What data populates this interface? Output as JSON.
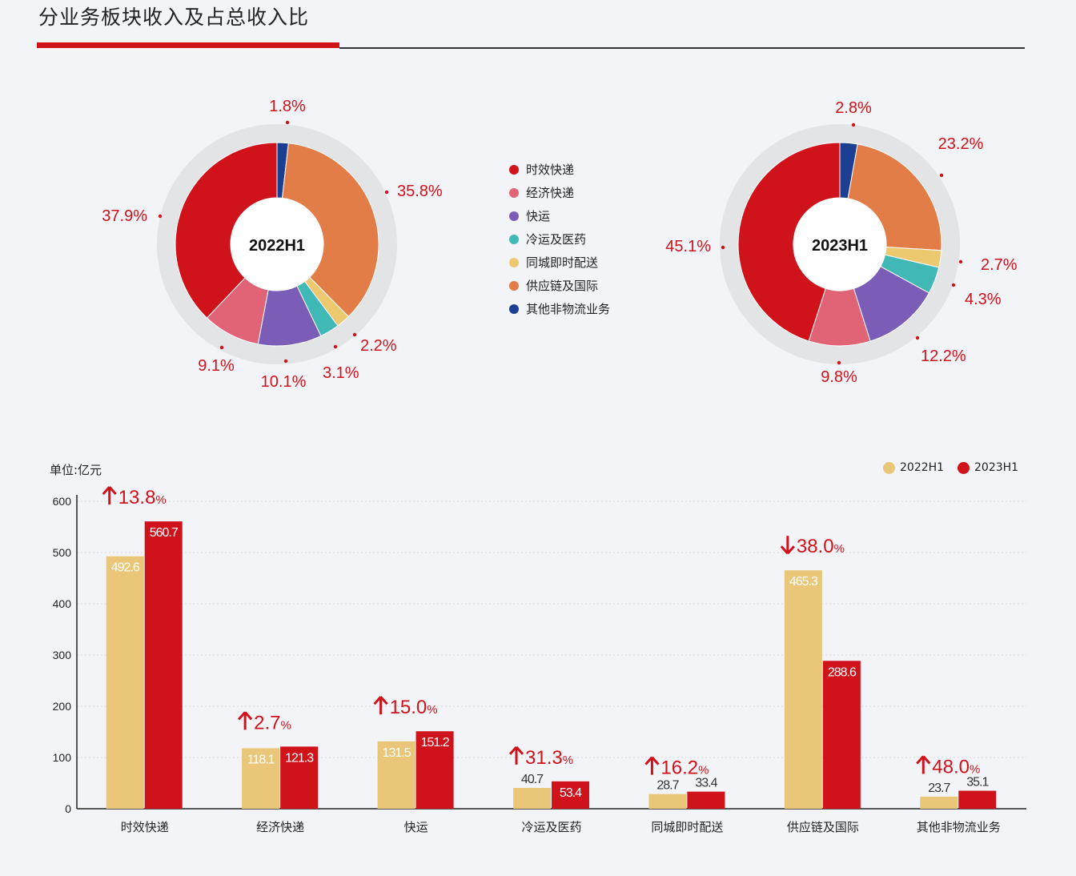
{
  "page": {
    "title": "分业务板块收入及占总收入比"
  },
  "colors": {
    "accent_red": "#d0121b",
    "label_red": "#d0121b",
    "bar_2022": "#e9c678",
    "bar_2023": "#d0121b",
    "ring_bg": "#e3e4e6"
  },
  "legend": {
    "items": [
      {
        "label": "时效快递",
        "color": "#d0121b"
      },
      {
        "label": "经济快递",
        "color": "#e06476"
      },
      {
        "label": "快运",
        "color": "#7b5cb6"
      },
      {
        "label": "冷运及医药",
        "color": "#3fb8b6"
      },
      {
        "label": "同城即时配送",
        "color": "#ecc86e"
      },
      {
        "label": "供应链及国际",
        "color": "#e37d48"
      },
      {
        "label": "其他非物流业务",
        "color": "#1c3f93"
      }
    ]
  },
  "bar_chart": {
    "unit_label": "单位:亿元",
    "legend_2022": "2022H1",
    "legend_2023": "2023H1"
  },
  "chart_data": [
    {
      "type": "pie",
      "title": "2022H1",
      "categories": [
        "其他非物流业务",
        "供应链及国际",
        "同城即时配送",
        "冷运及医药",
        "快运",
        "经济快递",
        "时效快递"
      ],
      "values": [
        1.8,
        35.8,
        2.2,
        3.1,
        10.1,
        9.1,
        37.9
      ],
      "labels": [
        "1.8%",
        "35.8%",
        "2.2%",
        "3.1%",
        "10.1%",
        "9.1%",
        "37.9%"
      ],
      "colors": [
        "#1c3f93",
        "#e37d48",
        "#ecc86e",
        "#3fb8b6",
        "#7b5cb6",
        "#e06476",
        "#d0121b"
      ]
    },
    {
      "type": "pie",
      "title": "2023H1",
      "categories": [
        "其他非物流业务",
        "供应链及国际",
        "同城即时配送",
        "冷运及医药",
        "快运",
        "经济快递",
        "时效快递"
      ],
      "values": [
        2.8,
        23.2,
        2.7,
        4.3,
        12.2,
        9.8,
        45.1
      ],
      "labels": [
        "2.8%",
        "23.2%",
        "2.7%",
        "4.3%",
        "12.2%",
        "9.8%",
        "45.1%"
      ],
      "colors": [
        "#1c3f93",
        "#e37d48",
        "#ecc86e",
        "#3fb8b6",
        "#7b5cb6",
        "#e06476",
        "#d0121b"
      ]
    },
    {
      "type": "bar",
      "categories": [
        "时效快递",
        "经济快递",
        "快运",
        "冷运及医药",
        "同城即时配送",
        "供应链及国际",
        "其他非物流业务"
      ],
      "series": [
        {
          "name": "2022H1",
          "values": [
            492.6,
            118.1,
            131.5,
            40.7,
            28.7,
            465.3,
            23.7
          ],
          "labels": [
            "492.6",
            "118.1",
            "131.5",
            "40.7",
            "28.7",
            "465.3",
            "23.7"
          ],
          "color": "#e9c678"
        },
        {
          "name": "2023H1",
          "values": [
            560.7,
            121.3,
            151.2,
            53.4,
            33.4,
            288.6,
            35.1
          ],
          "labels": [
            "560.7",
            "121.3",
            "151.2",
            "53.4",
            "33.4",
            "288.6",
            "35.1"
          ],
          "color": "#d0121b"
        }
      ],
      "changes": [
        {
          "dir": "up",
          "value": "13.8"
        },
        {
          "dir": "up",
          "value": "2.7"
        },
        {
          "dir": "up",
          "value": "15.0"
        },
        {
          "dir": "up",
          "value": "31.3"
        },
        {
          "dir": "up",
          "value": "16.2"
        },
        {
          "dir": "down",
          "value": "38.0"
        },
        {
          "dir": "up",
          "value": "48.0"
        }
      ],
      "change_unit": "%",
      "ylim": [
        0,
        600
      ],
      "yticks": [
        "0",
        "100",
        "200",
        "300",
        "400",
        "500",
        "600"
      ],
      "grid": true,
      "legend_position": "top-right"
    }
  ]
}
